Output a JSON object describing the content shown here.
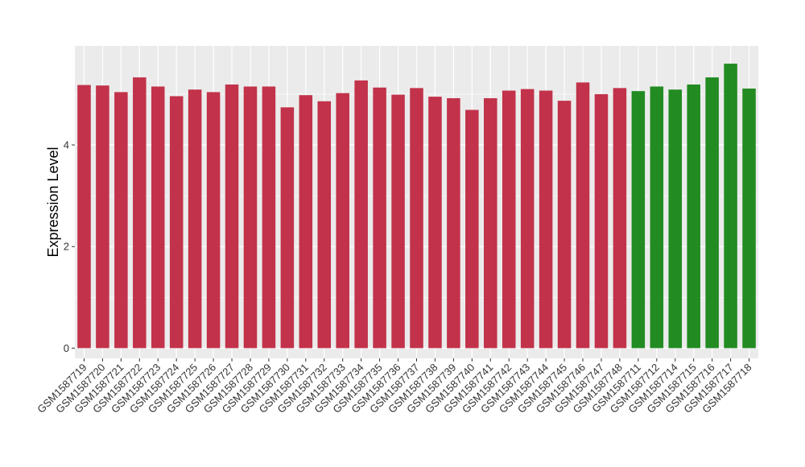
{
  "chart_data": {
    "type": "bar",
    "title": "",
    "xlabel": "",
    "ylabel": "Expression Level",
    "ylim": [
      -0.2,
      5.95
    ],
    "yticks": [
      0,
      2,
      4
    ],
    "grid": true,
    "legend": "none",
    "colors": {
      "red": "#c2324a",
      "green": "#228b22",
      "panel": "#ebebeb",
      "grid": "#ffffff"
    },
    "categories": [
      "GSM1587719",
      "GSM1587720",
      "GSM1587721",
      "GSM1587722",
      "GSM1587723",
      "GSM1587724",
      "GSM1587725",
      "GSM1587726",
      "GSM1587727",
      "GSM1587728",
      "GSM1587729",
      "GSM1587730",
      "GSM1587731",
      "GSM1587732",
      "GSM1587733",
      "GSM1587734",
      "GSM1587735",
      "GSM1587736",
      "GSM1587737",
      "GSM1587738",
      "GSM1587739",
      "GSM1587740",
      "GSM1587741",
      "GSM1587742",
      "GSM1587743",
      "GSM1587744",
      "GSM1587745",
      "GSM1587746",
      "GSM1587747",
      "GSM1587748",
      "GSM1587711",
      "GSM1587712",
      "GSM1587714",
      "GSM1587715",
      "GSM1587716",
      "GSM1587717",
      "GSM1587718"
    ],
    "values": [
      5.18,
      5.17,
      5.04,
      5.33,
      5.15,
      4.96,
      5.09,
      5.04,
      5.19,
      5.15,
      5.15,
      4.74,
      4.98,
      4.86,
      5.02,
      5.27,
      5.13,
      4.99,
      5.12,
      4.95,
      4.92,
      4.69,
      4.92,
      5.07,
      5.1,
      5.07,
      4.87,
      5.23,
      5.0,
      5.12,
      5.06,
      5.15,
      5.09,
      5.19,
      5.33,
      5.6,
      5.11
    ],
    "bar_colors": [
      "red",
      "red",
      "red",
      "red",
      "red",
      "red",
      "red",
      "red",
      "red",
      "red",
      "red",
      "red",
      "red",
      "red",
      "red",
      "red",
      "red",
      "red",
      "red",
      "red",
      "red",
      "red",
      "red",
      "red",
      "red",
      "red",
      "red",
      "red",
      "red",
      "red",
      "green",
      "green",
      "green",
      "green",
      "green",
      "green",
      "green"
    ]
  }
}
